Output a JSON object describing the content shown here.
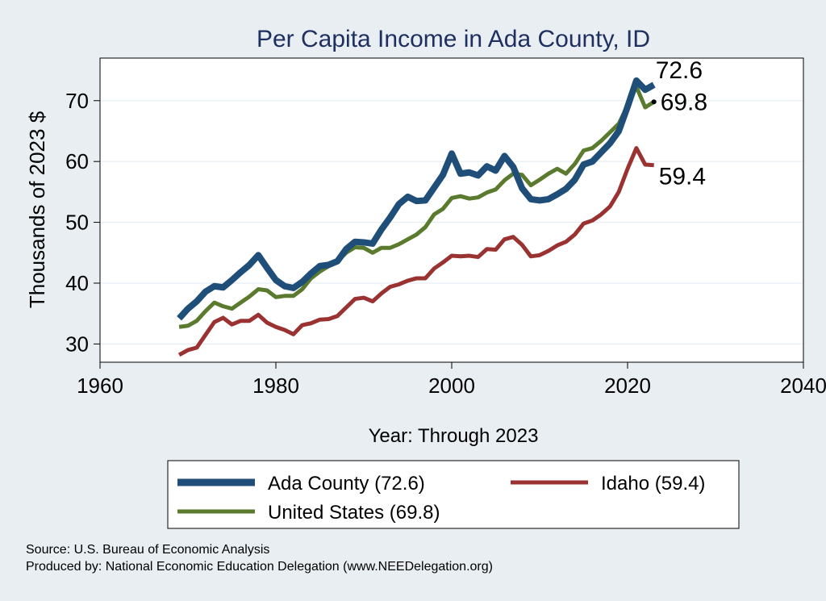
{
  "chart_data": {
    "type": "line",
    "title": "Per Capita Income in Ada County, ID",
    "xlabel": "Year: Through 2023",
    "ylabel": "Thousands of 2023 $",
    "xlim": [
      1960,
      2040
    ],
    "ylim": [
      27,
      77
    ],
    "xticks": [
      1960,
      1980,
      2000,
      2020,
      2040
    ],
    "yticks": [
      30,
      40,
      50,
      60,
      70
    ],
    "grid": true,
    "legend_position": "bottom",
    "colors": {
      "ada": "#1f4e79",
      "us": "#5a7a2e",
      "idaho": "#9b3232",
      "background": "#e8eef2",
      "plot_bg": "#ffffff",
      "grid": "#e6eef3",
      "title": "#1f3060"
    },
    "x": [
      1969,
      1970,
      1971,
      1972,
      1973,
      1974,
      1975,
      1976,
      1977,
      1978,
      1979,
      1980,
      1981,
      1982,
      1983,
      1984,
      1985,
      1986,
      1987,
      1988,
      1989,
      1990,
      1991,
      1992,
      1993,
      1994,
      1995,
      1996,
      1997,
      1998,
      1999,
      2000,
      2001,
      2002,
      2003,
      2004,
      2005,
      2006,
      2007,
      2008,
      2009,
      2010,
      2011,
      2012,
      2013,
      2014,
      2015,
      2016,
      2017,
      2018,
      2019,
      2020,
      2021,
      2022,
      2023
    ],
    "series": [
      {
        "key": "ada",
        "name": "Ada County (72.6)",
        "end_label": "72.6",
        "values": [
          34.2,
          35.8,
          37.0,
          38.6,
          39.5,
          39.3,
          40.5,
          41.8,
          43.0,
          44.6,
          42.5,
          40.5,
          39.5,
          39.2,
          40.2,
          41.6,
          42.8,
          43.0,
          43.6,
          45.6,
          46.8,
          46.7,
          46.5,
          48.8,
          50.8,
          53.0,
          54.2,
          53.5,
          53.6,
          55.7,
          57.8,
          61.3,
          58.0,
          58.2,
          57.7,
          59.2,
          58.5,
          60.9,
          59.1,
          55.6,
          53.8,
          53.6,
          53.8,
          54.6,
          55.5,
          57.0,
          59.5,
          60.0,
          61.5,
          63.0,
          65.0,
          69.0,
          73.3,
          71.8,
          72.6
        ]
      },
      {
        "key": "us",
        "name": "United States (69.8)",
        "end_label": "69.8",
        "values": [
          32.8,
          33.0,
          33.8,
          35.4,
          36.8,
          36.2,
          35.8,
          36.8,
          37.8,
          39.0,
          38.8,
          37.7,
          37.9,
          37.9,
          39.0,
          40.8,
          41.9,
          42.8,
          43.6,
          45.0,
          45.9,
          45.8,
          45.0,
          45.8,
          45.8,
          46.4,
          47.2,
          48.0,
          49.2,
          51.3,
          52.2,
          54.0,
          54.3,
          53.9,
          54.1,
          54.9,
          55.4,
          56.9,
          58.0,
          57.8,
          56.1,
          57.0,
          58.0,
          58.8,
          58.0,
          59.6,
          61.8,
          62.2,
          63.4,
          64.8,
          66.2,
          69.2,
          72.3,
          68.9,
          69.8
        ]
      },
      {
        "key": "idaho",
        "name": "Idaho (59.4)",
        "end_label": "59.4",
        "values": [
          28.2,
          29.0,
          29.4,
          31.5,
          33.6,
          34.3,
          33.2,
          33.8,
          33.8,
          34.8,
          33.5,
          32.8,
          32.3,
          31.6,
          33.1,
          33.4,
          34.0,
          34.1,
          34.6,
          36.0,
          37.4,
          37.6,
          37.0,
          38.3,
          39.4,
          39.8,
          40.4,
          40.8,
          40.8,
          42.4,
          43.4,
          44.5,
          44.4,
          44.5,
          44.3,
          45.6,
          45.5,
          47.2,
          47.6,
          46.3,
          44.4,
          44.6,
          45.3,
          46.2,
          46.8,
          48.0,
          49.8,
          50.3,
          51.3,
          52.6,
          55.0,
          58.8,
          62.2,
          59.5,
          59.4
        ]
      }
    ],
    "legend": [
      {
        "key": "ada",
        "label": "Ada County (72.6)"
      },
      {
        "key": "idaho",
        "label": "Idaho (59.4)"
      },
      {
        "key": "us",
        "label": "United States (69.8)"
      }
    ]
  },
  "footer": {
    "source": "Source: U.S. Bureau of Economic Analysis",
    "produced_by": "Produced by: National Economic Education Delegation (www.NEEDelegation.org)"
  }
}
